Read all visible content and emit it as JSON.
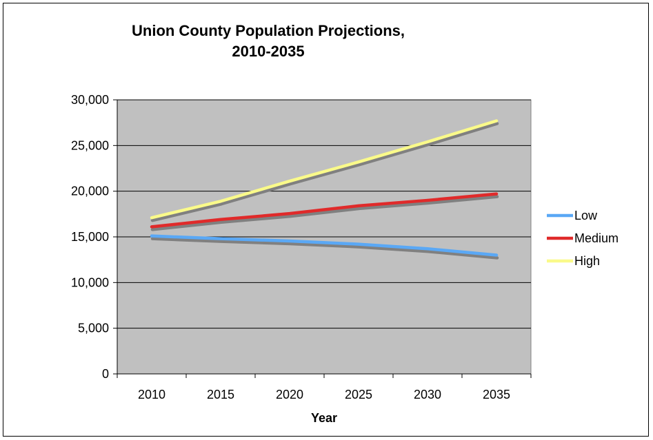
{
  "chart_data": {
    "type": "line",
    "title_lines": [
      "Union County Population Projections,",
      "2010-2035"
    ],
    "xlabel": "Year",
    "ylabel": "",
    "categories": [
      "2010",
      "2015",
      "2020",
      "2025",
      "2030",
      "2035"
    ],
    "ylim": [
      0,
      30000
    ],
    "y_ticks": [
      "0",
      "5,000",
      "10,000",
      "15,000",
      "20,000",
      "25,000",
      "30,000"
    ],
    "y_tick_values": [
      0,
      5000,
      10000,
      15000,
      20000,
      25000,
      30000
    ],
    "grid": true,
    "legend_position": "right",
    "plot_background": "#c0c0c0",
    "series": [
      {
        "name": "Low",
        "color": "#5aa8f5",
        "values": [
          15100,
          14800,
          14550,
          14200,
          13700,
          13000
        ]
      },
      {
        "name": "Medium",
        "color": "#e02a2a",
        "values": [
          16100,
          16900,
          17550,
          18400,
          19000,
          19700
        ]
      },
      {
        "name": "High",
        "color": "#fafa8a",
        "values": [
          17100,
          18900,
          21100,
          23200,
          25400,
          27700
        ]
      }
    ]
  }
}
